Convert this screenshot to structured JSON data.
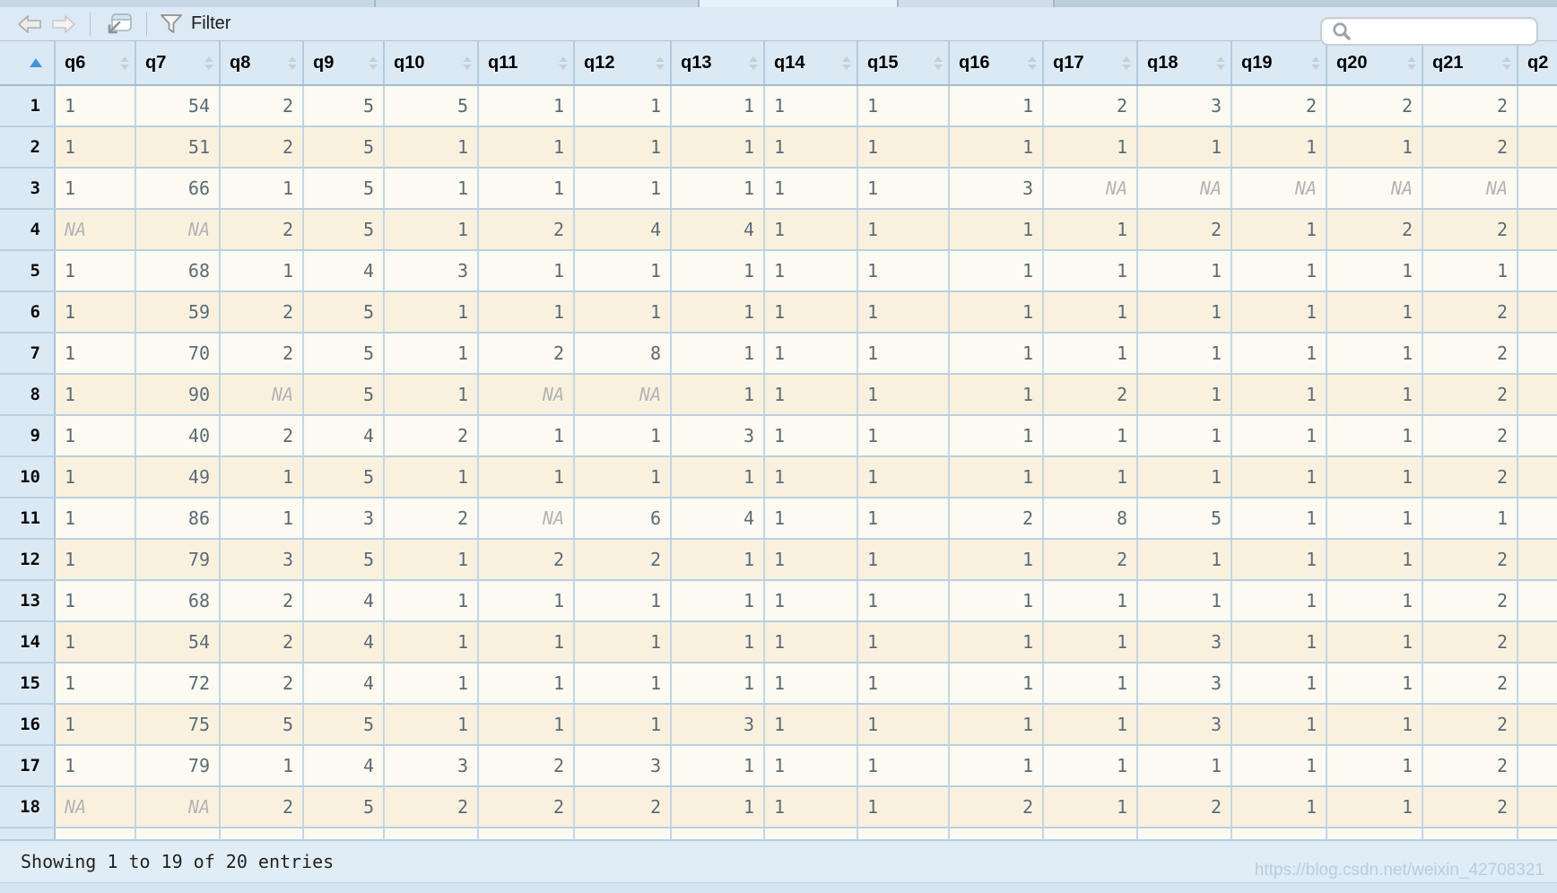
{
  "toolbar": {
    "filter_label": "Filter",
    "search": {
      "value": "",
      "placeholder": ""
    }
  },
  "table": {
    "row_header_sort": "ascending",
    "columns": [
      {
        "label": "q6",
        "align": "left"
      },
      {
        "label": "q7",
        "align": "right"
      },
      {
        "label": "q8",
        "align": "right"
      },
      {
        "label": "q9",
        "align": "right"
      },
      {
        "label": "q10",
        "align": "right"
      },
      {
        "label": "q11",
        "align": "right"
      },
      {
        "label": "q12",
        "align": "right"
      },
      {
        "label": "q13",
        "align": "right"
      },
      {
        "label": "q14",
        "align": "left"
      },
      {
        "label": "q15",
        "align": "left"
      },
      {
        "label": "q16",
        "align": "right"
      },
      {
        "label": "q17",
        "align": "right"
      },
      {
        "label": "q18",
        "align": "right"
      },
      {
        "label": "q19",
        "align": "right"
      },
      {
        "label": "q20",
        "align": "right"
      },
      {
        "label": "q21",
        "align": "right"
      },
      {
        "label": "q2",
        "align": "left",
        "partial": true
      }
    ],
    "rows": [
      {
        "n": "1",
        "v": [
          "1",
          "54",
          "2",
          "5",
          "5",
          "1",
          "1",
          "1",
          "1",
          "1",
          "1",
          "2",
          "3",
          "2",
          "2",
          "2"
        ]
      },
      {
        "n": "2",
        "v": [
          "1",
          "51",
          "2",
          "5",
          "1",
          "1",
          "1",
          "1",
          "1",
          "1",
          "1",
          "1",
          "1",
          "1",
          "1",
          "2"
        ]
      },
      {
        "n": "3",
        "v": [
          "1",
          "66",
          "1",
          "5",
          "1",
          "1",
          "1",
          "1",
          "1",
          "1",
          "3",
          "NA",
          "NA",
          "NA",
          "NA",
          "NA"
        ]
      },
      {
        "n": "4",
        "v": [
          "NA",
          "NA",
          "2",
          "5",
          "1",
          "2",
          "4",
          "4",
          "1",
          "1",
          "1",
          "1",
          "2",
          "1",
          "2",
          "2"
        ]
      },
      {
        "n": "5",
        "v": [
          "1",
          "68",
          "1",
          "4",
          "3",
          "1",
          "1",
          "1",
          "1",
          "1",
          "1",
          "1",
          "1",
          "1",
          "1",
          "1"
        ]
      },
      {
        "n": "6",
        "v": [
          "1",
          "59",
          "2",
          "5",
          "1",
          "1",
          "1",
          "1",
          "1",
          "1",
          "1",
          "1",
          "1",
          "1",
          "1",
          "2"
        ]
      },
      {
        "n": "7",
        "v": [
          "1",
          "70",
          "2",
          "5",
          "1",
          "2",
          "8",
          "1",
          "1",
          "1",
          "1",
          "1",
          "1",
          "1",
          "1",
          "2"
        ]
      },
      {
        "n": "8",
        "v": [
          "1",
          "90",
          "NA",
          "5",
          "1",
          "NA",
          "NA",
          "1",
          "1",
          "1",
          "1",
          "2",
          "1",
          "1",
          "1",
          "2"
        ]
      },
      {
        "n": "9",
        "v": [
          "1",
          "40",
          "2",
          "4",
          "2",
          "1",
          "1",
          "3",
          "1",
          "1",
          "1",
          "1",
          "1",
          "1",
          "1",
          "2"
        ]
      },
      {
        "n": "10",
        "v": [
          "1",
          "49",
          "1",
          "5",
          "1",
          "1",
          "1",
          "1",
          "1",
          "1",
          "1",
          "1",
          "1",
          "1",
          "1",
          "2"
        ]
      },
      {
        "n": "11",
        "v": [
          "1",
          "86",
          "1",
          "3",
          "2",
          "NA",
          "6",
          "4",
          "1",
          "1",
          "2",
          "8",
          "5",
          "1",
          "1",
          "1"
        ]
      },
      {
        "n": "12",
        "v": [
          "1",
          "79",
          "3",
          "5",
          "1",
          "2",
          "2",
          "1",
          "1",
          "1",
          "1",
          "2",
          "1",
          "1",
          "1",
          "2"
        ]
      },
      {
        "n": "13",
        "v": [
          "1",
          "68",
          "2",
          "4",
          "1",
          "1",
          "1",
          "1",
          "1",
          "1",
          "1",
          "1",
          "1",
          "1",
          "1",
          "2"
        ]
      },
      {
        "n": "14",
        "v": [
          "1",
          "54",
          "2",
          "4",
          "1",
          "1",
          "1",
          "1",
          "1",
          "1",
          "1",
          "1",
          "3",
          "1",
          "1",
          "2"
        ]
      },
      {
        "n": "15",
        "v": [
          "1",
          "72",
          "2",
          "4",
          "1",
          "1",
          "1",
          "1",
          "1",
          "1",
          "1",
          "1",
          "3",
          "1",
          "1",
          "2"
        ]
      },
      {
        "n": "16",
        "v": [
          "1",
          "75",
          "5",
          "5",
          "1",
          "1",
          "1",
          "3",
          "1",
          "1",
          "1",
          "1",
          "3",
          "1",
          "1",
          "2"
        ]
      },
      {
        "n": "17",
        "v": [
          "1",
          "79",
          "1",
          "4",
          "3",
          "2",
          "3",
          "1",
          "1",
          "1",
          "1",
          "1",
          "1",
          "1",
          "1",
          "2"
        ]
      },
      {
        "n": "18",
        "v": [
          "NA",
          "NA",
          "2",
          "5",
          "2",
          "2",
          "2",
          "1",
          "1",
          "1",
          "2",
          "1",
          "2",
          "1",
          "1",
          "2"
        ]
      }
    ]
  },
  "footer": {
    "status": "Showing 1 to 19 of 20 entries",
    "watermark": "https://blog.csdn.net/weixin_42708321"
  },
  "colors": {
    "sort_accent": "#4593dd",
    "header_bg": "#dbe9f5",
    "row_odd": "#fcfaf1",
    "row_even": "#f9f1dd",
    "grid_line": "#b9d0e0",
    "na_text": "#b3b3b3",
    "cell_text": "#5b6a74"
  }
}
